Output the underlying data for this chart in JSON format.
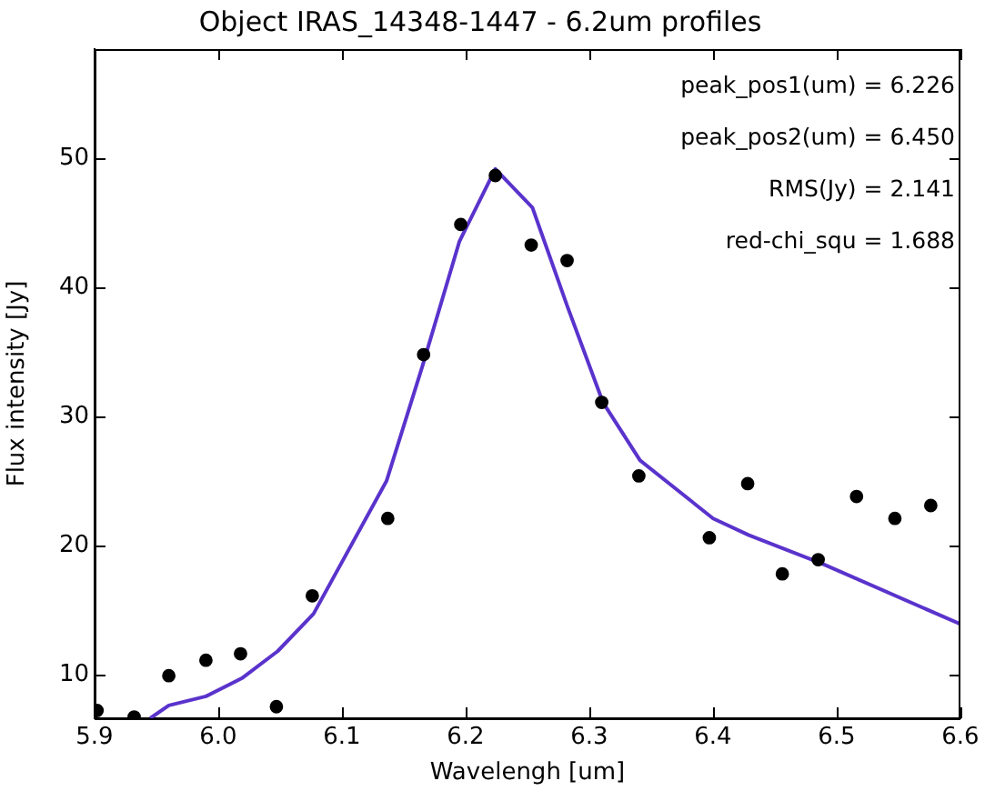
{
  "chart_data": {
    "type": "scatter",
    "title": "Object IRAS_14348-1447 - 6.2um profiles",
    "xlabel": "Wavelengh [um]",
    "ylabel": "Flux intensity [Jy]",
    "annotations": [
      "peak_pos1(um) = 6.226",
      "peak_pos2(um) = 6.450",
      "RMS(Jy) = 2.141",
      "red-chi_squ = 1.688"
    ],
    "xlim": [
      5.9,
      6.6
    ],
    "xticks": [
      5.9,
      {
        "value": 6.0,
        "label": "6.0"
      },
      6.1,
      6.2,
      6.3,
      6.4,
      6.5,
      6.6
    ],
    "ylim": [
      6.6,
      58.5
    ],
    "yticks": [
      10,
      20,
      30,
      40,
      50
    ],
    "grid": false,
    "legend": false,
    "marker": "circle",
    "series": [
      {
        "color": "#000000",
        "x": [
          5.902,
          5.932,
          5.96,
          5.99,
          6.018,
          6.047,
          6.076,
          6.137,
          6.166,
          6.196,
          6.224,
          6.253,
          6.282,
          6.31,
          6.34,
          6.397,
          6.428,
          6.456,
          6.485,
          6.516,
          6.547,
          6.576
        ],
        "values": [
          7.2,
          6.7,
          9.9,
          11.1,
          11.6,
          7.5,
          16.1,
          22.1,
          34.8,
          44.9,
          48.7,
          43.3,
          42.1,
          31.1,
          25.4,
          20.6,
          24.8,
          17.8,
          18.9,
          23.8,
          22.1,
          23.1
        ]
      },
      {
        "type": "line",
        "color": "#5a33cc",
        "marker": "none",
        "x": [
          5.945,
          5.96,
          5.99,
          6.019,
          6.048,
          6.077,
          6.136,
          6.165,
          6.195,
          6.224,
          6.254,
          6.282,
          6.311,
          6.341,
          6.4,
          6.429,
          6.488,
          6.6
        ],
        "values": [
          6.6,
          7.6,
          8.3,
          9.7,
          11.8,
          14.7,
          25.0,
          33.9,
          43.6,
          49.2,
          46.2,
          38.6,
          31.1,
          26.6,
          22.1,
          20.8,
          18.6,
          13.9
        ]
      }
    ]
  }
}
